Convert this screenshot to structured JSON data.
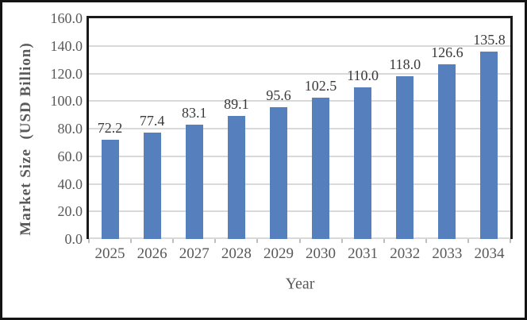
{
  "chart_data": {
    "type": "bar",
    "title": "",
    "categories": [
      "2025",
      "2026",
      "2027",
      "2028",
      "2029",
      "2030",
      "2031",
      "2032",
      "2033",
      "2034"
    ],
    "values": [
      72.2,
      77.4,
      83.1,
      89.1,
      95.6,
      102.5,
      110.0,
      118.0,
      126.6,
      135.8
    ],
    "data_labels": [
      "72.2",
      "77.4",
      "83.1",
      "89.1",
      "95.6",
      "102.5",
      "110.0",
      "118.0",
      "126.6",
      "135.8"
    ],
    "xlabel": "Year",
    "ylabel": "Market Size  (USD Billion)",
    "ylim": [
      0,
      160
    ],
    "ytick_step": 20,
    "yticks": [
      "0.0",
      "20.0",
      "40.0",
      "60.0",
      "80.0",
      "100.0",
      "120.0",
      "140.0",
      "160.0"
    ],
    "grid": true,
    "legend_position": "none",
    "bar_color": "#5580BD",
    "gridline_color": "#d9d9d9",
    "axis_line_color": "#d9d9d9",
    "tick_mark_color": "#bfbfbf",
    "label_color": "#3a3a3a",
    "tick_label_color": "#595959",
    "plot_border_color": "#1a1a1a"
  }
}
